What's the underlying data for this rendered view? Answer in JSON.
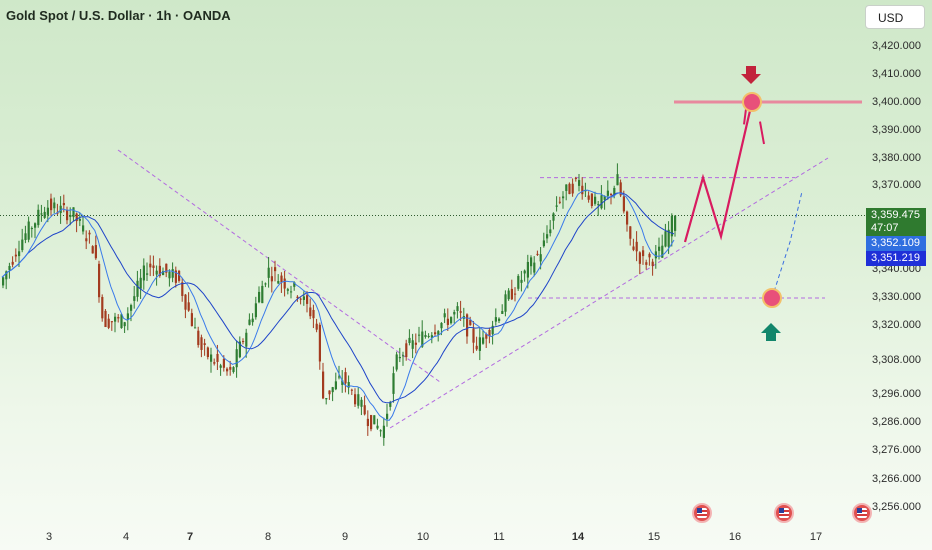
{
  "header": {
    "title": "Gold Spot / U.S. Dollar · 1h · OANDA",
    "currency": "USD"
  },
  "price_axis": {
    "labels": [
      "3,420.000",
      "3,410.000",
      "3,400.000",
      "3,390.000",
      "3,380.000",
      "3,370.000",
      "3,340.000",
      "3,330.000",
      "3,320.000",
      "3,308.000",
      "3,296.000",
      "3,286.000",
      "3,276.000",
      "3,266.000",
      "3,256.000"
    ]
  },
  "price_tags": {
    "last_price": "3,359.475",
    "countdown": "47:07",
    "ma_fast": "3,352.109",
    "ma_slow": "3,351.219"
  },
  "time_axis": {
    "labels": [
      "3",
      "4",
      "7",
      "8",
      "9",
      "10",
      "11",
      "14",
      "15",
      "16",
      "17"
    ],
    "bold": [
      "7",
      "14"
    ]
  },
  "colors": {
    "up": "#2e7d32",
    "down": "#a33b1f",
    "ma": "#2b59d8",
    "projection": "#d81b60",
    "level": "#e8899e",
    "trend": "#b36be0",
    "up_arrow": "#12866b",
    "down_arrow": "#c2233c"
  },
  "icons": [
    "us-flag-icon",
    "us-flag-icon",
    "us-flag-icon",
    "up-arrow-icon",
    "down-arrow-icon"
  ],
  "chart_data": {
    "type": "candlestick",
    "symbol": "Gold Spot / U.S. Dollar",
    "interval": "1h",
    "broker": "OANDA",
    "last_price": 3359.475,
    "ma_values": [
      3352.109,
      3351.219
    ],
    "levels": {
      "resistance_target": 3400.0,
      "support": 3330.0,
      "range_top": 3373.0
    },
    "projection_path": [
      3350,
      3373,
      3352,
      3400
    ],
    "alternate_path": [
      3330,
      3368
    ],
    "sessions": [
      "3",
      "4",
      "7",
      "8",
      "9",
      "10",
      "11",
      "14",
      "15",
      "16",
      "17"
    ],
    "session_ohlc": [
      {
        "day": "3",
        "open": 3330,
        "high": 3363,
        "low": 3327,
        "close": 3352
      },
      {
        "day": "4",
        "open": 3352,
        "high": 3358,
        "low": 3316,
        "close": 3332
      },
      {
        "day": "7",
        "open": 3332,
        "high": 3347,
        "low": 3298,
        "close": 3308
      },
      {
        "day": "8",
        "open": 3308,
        "high": 3343,
        "low": 3300,
        "close": 3338
      },
      {
        "day": "9",
        "open": 3338,
        "high": 3340,
        "low": 3283,
        "close": 3286
      },
      {
        "day": "10",
        "open": 3286,
        "high": 3325,
        "low": 3283,
        "close": 3318
      },
      {
        "day": "11",
        "open": 3318,
        "high": 3370,
        "low": 3313,
        "close": 3365
      },
      {
        "day": "14",
        "open": 3365,
        "high": 3374,
        "low": 3345,
        "close": 3350
      },
      {
        "day": "15",
        "open": 3350,
        "high": 3362,
        "low": 3343,
        "close": 3359.475
      }
    ]
  }
}
